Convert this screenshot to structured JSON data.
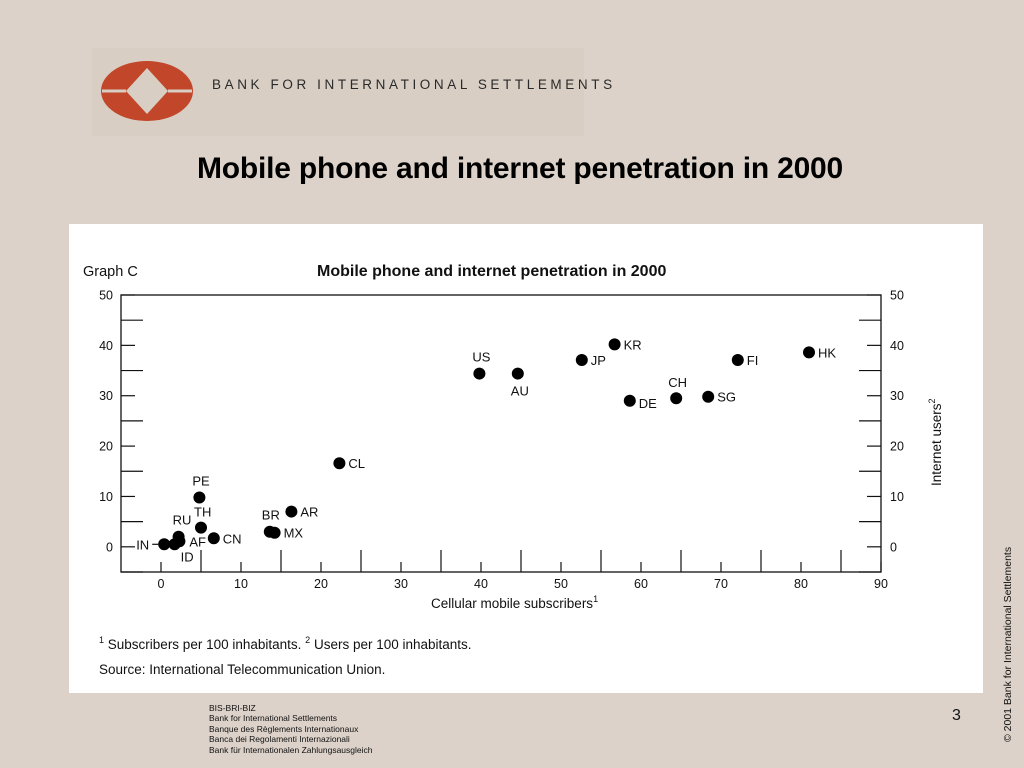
{
  "header": {
    "org_name": "BANK FOR INTERNATIONAL SETTLEMENTS",
    "logo_colors": {
      "outer": "#c2462a",
      "inner": "#d8cec4"
    }
  },
  "slide_title": "Mobile phone and internet penetration in 2000",
  "chart_data": {
    "type": "scatter",
    "graph_label": "Graph C",
    "title": "Mobile phone and internet penetration in 2000",
    "xlabel": "Cellular mobile subscribers",
    "xlabel_sup": "1",
    "ylabel": "Internet users",
    "ylabel_sup": "2",
    "xlim": [
      -5,
      90
    ],
    "ylim": [
      -5,
      50
    ],
    "xticks": [
      0,
      10,
      20,
      30,
      40,
      50,
      60,
      70,
      80,
      90
    ],
    "yticks": [
      0,
      10,
      20,
      30,
      40,
      50
    ],
    "grid": false,
    "points": [
      {
        "label": "IN",
        "x": 0.4,
        "y": 0.5
      },
      {
        "label": "ID",
        "x": 1.7,
        "y": 0.5
      },
      {
        "label": "AF",
        "x": 2.3,
        "y": 1.1
      },
      {
        "label": "RU",
        "x": 2.2,
        "y": 2.0
      },
      {
        "label": "CN",
        "x": 6.6,
        "y": 1.7
      },
      {
        "label": "TH",
        "x": 5.0,
        "y": 3.8
      },
      {
        "label": "PE",
        "x": 4.8,
        "y": 9.8
      },
      {
        "label": "BR",
        "x": 13.6,
        "y": 3.0
      },
      {
        "label": "MX",
        "x": 14.2,
        "y": 2.8
      },
      {
        "label": "AR",
        "x": 16.3,
        "y": 7.0
      },
      {
        "label": "CL",
        "x": 22.3,
        "y": 16.6
      },
      {
        "label": "US",
        "x": 39.8,
        "y": 34.4
      },
      {
        "label": "AU",
        "x": 44.6,
        "y": 34.4
      },
      {
        "label": "JP",
        "x": 52.6,
        "y": 37.1
      },
      {
        "label": "KR",
        "x": 56.7,
        "y": 40.2
      },
      {
        "label": "DE",
        "x": 58.6,
        "y": 29.0
      },
      {
        "label": "CH",
        "x": 64.4,
        "y": 29.5
      },
      {
        "label": "SG",
        "x": 68.4,
        "y": 29.8
      },
      {
        "label": "FI",
        "x": 72.1,
        "y": 37.1
      },
      {
        "label": "HK",
        "x": 81.0,
        "y": 38.6
      }
    ],
    "footnote_1": "Subscribers per 100 inhabitants.",
    "footnote_2": "Users per 100 inhabitants.",
    "source": "Source: International Telecommunication Union."
  },
  "footer": {
    "lines": [
      "BIS-BRI-BIZ",
      "Bank for International Settlements",
      "Banque des Règlements Internationaux",
      "Banca dei Regolamenti Internazionali",
      "Bank für Internationalen Zahlungsausgleich"
    ],
    "page_number": "3",
    "copyright": "© 2001 Bank for International Settlements"
  }
}
